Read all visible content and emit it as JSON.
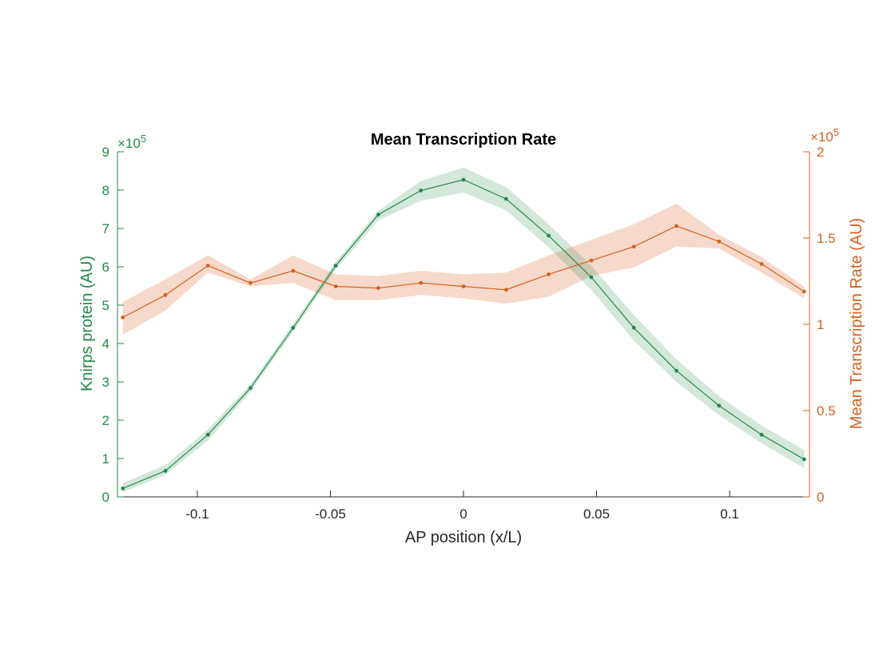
{
  "chart_data": {
    "type": "line",
    "title": "Mean Transcription Rate",
    "xlabel": "AP position (x/L)",
    "ylabel_left": "Knirps protein (AU)",
    "ylabel_right": "Mean Transcription Rate (AU)",
    "left_multiplier": "×10",
    "left_exponent": "5",
    "right_multiplier": "×10",
    "right_exponent": "5",
    "xlim": [
      -0.13,
      0.13
    ],
    "ylim_left": [
      0,
      9
    ],
    "ylim_right": [
      0,
      2
    ],
    "x_ticks": [
      -0.1,
      -0.05,
      0,
      0.05,
      0.1
    ],
    "x_tick_labels": [
      "-0.1",
      "-0.05",
      "0",
      "0.05",
      "0.1"
    ],
    "y_left_ticks": [
      0,
      1,
      2,
      3,
      4,
      5,
      6,
      7,
      8,
      9
    ],
    "y_left_tick_labels": [
      "0",
      "1",
      "2",
      "3",
      "4",
      "5",
      "6",
      "7",
      "8",
      "9"
    ],
    "y_right_ticks": [
      0,
      0.5,
      1,
      1.5,
      2
    ],
    "y_right_tick_labels": [
      "0",
      "0.5",
      "1",
      "1.5",
      "2"
    ],
    "grid": false,
    "x": [
      -0.128,
      -0.112,
      -0.096,
      -0.08,
      -0.064,
      -0.048,
      -0.032,
      -0.016,
      0,
      0.016,
      0.032,
      0.048,
      0.064,
      0.08,
      0.096,
      0.112,
      0.128
    ],
    "series": [
      {
        "axis": "left",
        "color": "#23894a",
        "values": [
          0.22,
          0.68,
          1.62,
          2.84,
          4.41,
          6.03,
          7.36,
          7.99,
          8.27,
          7.77,
          6.81,
          5.73,
          4.41,
          3.29,
          2.38,
          1.62,
          0.98
        ],
        "band_low": [
          0.12,
          0.58,
          1.47,
          2.74,
          4.31,
          5.93,
          7.21,
          7.72,
          7.94,
          7.47,
          6.51,
          5.4,
          4.08,
          3.0,
          2.13,
          1.4,
          0.75
        ],
        "band_high": [
          0.36,
          0.83,
          1.76,
          2.94,
          4.51,
          6.13,
          7.46,
          8.24,
          8.59,
          8.08,
          7.11,
          6.03,
          4.74,
          3.59,
          2.62,
          1.86,
          1.22
        ]
      },
      {
        "axis": "right",
        "color": "#d4611f",
        "values": [
          1.04,
          1.17,
          1.34,
          1.24,
          1.31,
          1.22,
          1.21,
          1.24,
          1.22,
          1.2,
          1.29,
          1.37,
          1.45,
          1.57,
          1.48,
          1.35,
          1.19
        ],
        "band_low": [
          0.94,
          1.08,
          1.3,
          1.22,
          1.24,
          1.14,
          1.14,
          1.17,
          1.15,
          1.12,
          1.16,
          1.28,
          1.33,
          1.45,
          1.44,
          1.3,
          1.15
        ],
        "band_high": [
          1.13,
          1.26,
          1.4,
          1.26,
          1.4,
          1.29,
          1.28,
          1.31,
          1.29,
          1.3,
          1.4,
          1.49,
          1.58,
          1.7,
          1.52,
          1.39,
          1.22
        ]
      }
    ]
  }
}
